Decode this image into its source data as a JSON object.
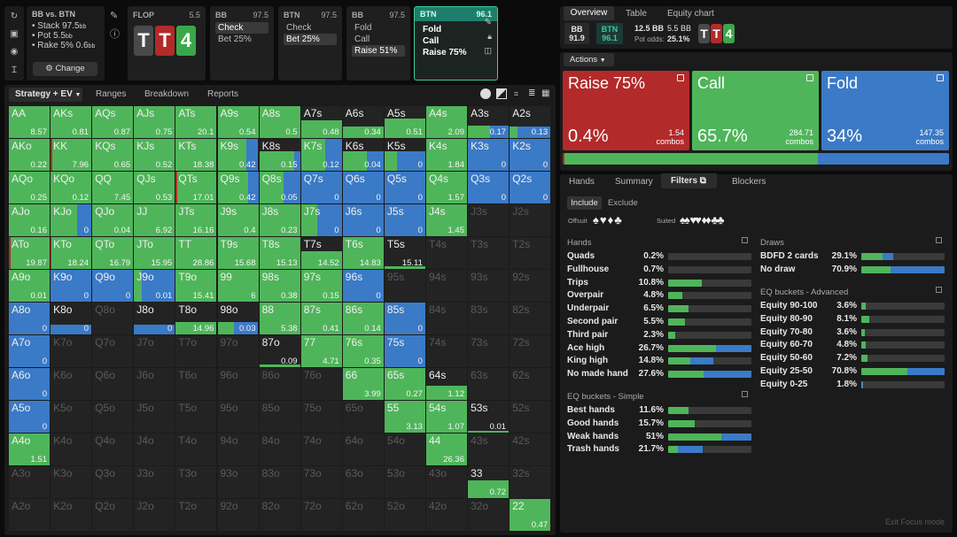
{
  "colors": {
    "raise": "#b32a2a",
    "call": "#4fb55a",
    "fold": "#3b7ac6",
    "empty": "#232323"
  },
  "left_icons": [
    "refresh-icon",
    "save-icon",
    "gamepad-icon",
    "text-cursor-icon"
  ],
  "header": {
    "spot": {
      "title": "BB vs. BTN",
      "stack": "Stack 97.5",
      "stack_unit": "bb",
      "pot": "Pot 5.5",
      "pot_unit": "bb",
      "rake": "Rake 5% 0.6",
      "rake_unit": "bb",
      "change": "Change"
    },
    "flop": {
      "label": "FLOP",
      "value": "5.5",
      "cards": [
        "T",
        "T",
        "4"
      ]
    },
    "bb1": {
      "label": "BB",
      "value": "97.5",
      "lines": [
        "Check",
        "Bet 25%"
      ]
    },
    "btn1": {
      "label": "BTN",
      "value": "97.5",
      "lines": [
        "Check",
        "Bet 25%"
      ]
    },
    "bb2": {
      "label": "BB",
      "value": "97.5",
      "lines": [
        "Fold",
        "Call",
        "Raise 51%"
      ]
    },
    "btn2": {
      "label": "BTN",
      "value": "96.1",
      "lines": [
        "Fold",
        "Call",
        "Raise 75%"
      ]
    }
  },
  "right_tabs": [
    "Overview",
    "Table",
    "Equity chart"
  ],
  "summary": {
    "bb_label": "BB",
    "bb_val": "91.9",
    "btn_label": "BTN",
    "btn_val": "96.1",
    "pot": "12.5 BB",
    "pot_odds_label": "Pot odds:",
    "bet": "5.5 BB",
    "pot_odds": "25.1%",
    "board": [
      "T",
      "T",
      "4"
    ]
  },
  "actions": {
    "label": "Actions",
    "items": [
      {
        "name": "Raise 75%",
        "pct": "0.4%",
        "combos": "1.54",
        "unit": "combos"
      },
      {
        "name": "Call",
        "pct": "65.7%",
        "combos": "284.71",
        "unit": "combos"
      },
      {
        "name": "Fold",
        "pct": "34%",
        "combos": "147.35",
        "unit": "combos"
      }
    ],
    "strip": {
      "raise": 0.4,
      "call": 65.7,
      "fold": 34
    }
  },
  "strategy_tabs": [
    "Strategy + EV",
    "Ranges",
    "Breakdown",
    "Reports"
  ],
  "grid": [
    [
      {
        "n": "AA",
        "ev": "8.57",
        "c": 100
      },
      {
        "n": "AKs",
        "ev": "0.81",
        "c": 100
      },
      {
        "n": "AQs",
        "ev": "0.87",
        "c": 100
      },
      {
        "n": "AJs",
        "ev": "0.75",
        "c": 100
      },
      {
        "n": "ATs",
        "ev": "20.1",
        "c": 100
      },
      {
        "n": "A9s",
        "ev": "0.54",
        "c": 100
      },
      {
        "n": "A8s",
        "ev": "0.5",
        "c": 100
      },
      {
        "n": "A7s",
        "ev": "0.48",
        "c": 100,
        "h": 0.55
      },
      {
        "n": "A6s",
        "ev": "0.34",
        "c": 100,
        "h": 0.35
      },
      {
        "n": "A5s",
        "ev": "0.51",
        "c": 100,
        "h": 0.6
      },
      {
        "n": "A4s",
        "ev": "2.09",
        "c": 100
      },
      {
        "n": "A3s",
        "ev": "0.17",
        "c": 55,
        "f": 45,
        "h": 0.4
      },
      {
        "n": "A2s",
        "ev": "0.13",
        "c": 20,
        "f": 80,
        "h": 0.35
      }
    ],
    [
      {
        "n": "AKo",
        "ev": "0.22",
        "c": 100
      },
      {
        "n": "KK",
        "ev": "7.96",
        "r": 5,
        "c": 95
      },
      {
        "n": "KQs",
        "ev": "0.65",
        "c": 100
      },
      {
        "n": "KJs",
        "ev": "0.52",
        "c": 100
      },
      {
        "n": "KTs",
        "ev": "18.38",
        "c": 100
      },
      {
        "n": "K9s",
        "ev": "0.42",
        "c": 70,
        "f": 30
      },
      {
        "n": "K8s",
        "ev": "0.15",
        "c": 85,
        "f": 15,
        "h": 0.6
      },
      {
        "n": "K7s",
        "ev": "0.12",
        "c": 60,
        "f": 40
      },
      {
        "n": "K6s",
        "ev": "0.04",
        "c": 60,
        "f": 40,
        "h": 0.6
      },
      {
        "n": "K5s",
        "ev": "0",
        "c": 30,
        "f": 70,
        "h": 0.6
      },
      {
        "n": "K4s",
        "ev": "1.84",
        "c": 100
      },
      {
        "n": "K3s",
        "ev": "0",
        "f": 100
      },
      {
        "n": "K2s",
        "ev": "0",
        "f": 100
      }
    ],
    [
      {
        "n": "AQo",
        "ev": "0.25",
        "c": 100
      },
      {
        "n": "KQo",
        "ev": "0.12",
        "c": 100
      },
      {
        "n": "QQ",
        "ev": "7.45",
        "c": 100
      },
      {
        "n": "QJs",
        "ev": "0.53",
        "c": 100
      },
      {
        "n": "QTs",
        "ev": "17.01",
        "r": 3,
        "c": 97
      },
      {
        "n": "Q9s",
        "ev": "0.42",
        "c": 75,
        "f": 25
      },
      {
        "n": "Q8s",
        "ev": "0.05",
        "c": 60,
        "f": 40
      },
      {
        "n": "Q7s",
        "ev": "0",
        "f": 100
      },
      {
        "n": "Q6s",
        "ev": "0",
        "f": 100
      },
      {
        "n": "Q5s",
        "ev": "0",
        "f": 100
      },
      {
        "n": "Q4s",
        "ev": "1.57",
        "c": 100
      },
      {
        "n": "Q3s",
        "ev": "0",
        "f": 100
      },
      {
        "n": "Q2s",
        "ev": "0",
        "f": 100
      }
    ],
    [
      {
        "n": "AJo",
        "ev": "0.16",
        "c": 100
      },
      {
        "n": "KJo",
        "ev": "0",
        "c": 65,
        "f": 35
      },
      {
        "n": "QJo",
        "ev": "0.04",
        "c": 100
      },
      {
        "n": "JJ",
        "ev": "6.92",
        "c": 100
      },
      {
        "n": "JTs",
        "ev": "16.16",
        "c": 100
      },
      {
        "n": "J9s",
        "ev": "0.4",
        "c": 100
      },
      {
        "n": "J8s",
        "ev": "0.23",
        "c": 100
      },
      {
        "n": "J7s",
        "ev": "0",
        "c": 40,
        "f": 60
      },
      {
        "n": "J6s",
        "ev": "0",
        "f": 100
      },
      {
        "n": "J5s",
        "ev": "0",
        "f": 100
      },
      {
        "n": "J4s",
        "ev": "1.45",
        "c": 100
      },
      {
        "n": "J3s",
        "d": 1
      },
      {
        "n": "J2s",
        "d": 1
      }
    ],
    [
      {
        "n": "ATo",
        "ev": "19.87",
        "r": 5,
        "c": 95
      },
      {
        "n": "KTo",
        "ev": "18.24",
        "r": 3,
        "c": 97
      },
      {
        "n": "QTo",
        "ev": "16.79",
        "c": 100
      },
      {
        "n": "JTo",
        "ev": "15.95",
        "c": 100
      },
      {
        "n": "TT",
        "ev": "28.86",
        "c": 100
      },
      {
        "n": "T9s",
        "ev": "15.68",
        "c": 100
      },
      {
        "n": "T8s",
        "ev": "15.13",
        "c": 100
      },
      {
        "n": "T7s",
        "ev": "14.52",
        "c": 100,
        "h": 0.55
      },
      {
        "n": "T6s",
        "ev": "14.83",
        "c": 100
      },
      {
        "n": "T5s",
        "ev": "15.11",
        "c": 100,
        "h": 0.08
      },
      {
        "n": "T4s",
        "d": 1
      },
      {
        "n": "T3s",
        "d": 1
      },
      {
        "n": "T2s",
        "d": 1
      }
    ],
    [
      {
        "n": "A9o",
        "ev": "0.01",
        "c": 100
      },
      {
        "n": "K9o",
        "ev": "0",
        "f": 100
      },
      {
        "n": "Q9o",
        "ev": "0",
        "f": 100
      },
      {
        "n": "J9o",
        "ev": "0.01",
        "c": 20,
        "f": 80
      },
      {
        "n": "T9o",
        "ev": "15.41",
        "c": 100
      },
      {
        "n": "99",
        "ev": "6",
        "c": 100
      },
      {
        "n": "98s",
        "ev": "0.38",
        "c": 100
      },
      {
        "n": "97s",
        "ev": "0.15",
        "c": 100
      },
      {
        "n": "96s",
        "ev": "0",
        "f": 100
      },
      {
        "n": "95s",
        "d": 1
      },
      {
        "n": "94s",
        "d": 1
      },
      {
        "n": "93s",
        "d": 1
      },
      {
        "n": "92s",
        "d": 1
      }
    ],
    [
      {
        "n": "A8o",
        "ev": "0",
        "f": 100
      },
      {
        "n": "K8o",
        "ev": "0",
        "f": 100,
        "h": 0.3
      },
      {
        "n": "Q8o",
        "d": 1
      },
      {
        "n": "J8o",
        "ev": "0",
        "f": 100,
        "h": 0.3
      },
      {
        "n": "T8o",
        "ev": "14.96",
        "c": 100,
        "h": 0.4
      },
      {
        "n": "98o",
        "ev": "0.03",
        "c": 40,
        "f": 60,
        "h": 0.4
      },
      {
        "n": "88",
        "ev": "5.38",
        "c": 100
      },
      {
        "n": "87s",
        "ev": "0.41",
        "c": 100
      },
      {
        "n": "86s",
        "ev": "0.14",
        "c": 100
      },
      {
        "n": "85s",
        "ev": "0",
        "f": 100
      },
      {
        "n": "84s",
        "d": 1
      },
      {
        "n": "83s",
        "d": 1
      },
      {
        "n": "82s",
        "d": 1
      }
    ],
    [
      {
        "n": "A7o",
        "ev": "0",
        "f": 100
      },
      {
        "n": "K7o",
        "d": 1
      },
      {
        "n": "Q7o",
        "d": 1
      },
      {
        "n": "J7o",
        "d": 1
      },
      {
        "n": "T7o",
        "d": 1
      },
      {
        "n": "97o",
        "d": 1
      },
      {
        "n": "87o",
        "ev": "0.09",
        "c": 100,
        "h": 0.08
      },
      {
        "n": "77",
        "ev": "4.71",
        "c": 100
      },
      {
        "n": "76s",
        "ev": "0.35",
        "c": 100
      },
      {
        "n": "75s",
        "ev": "0",
        "f": 100
      },
      {
        "n": "74s",
        "d": 1
      },
      {
        "n": "73s",
        "d": 1
      },
      {
        "n": "72s",
        "d": 1
      }
    ],
    [
      {
        "n": "A6o",
        "ev": "0",
        "f": 100
      },
      {
        "n": "K6o",
        "d": 1
      },
      {
        "n": "Q6o",
        "d": 1
      },
      {
        "n": "J6o",
        "d": 1
      },
      {
        "n": "T6o",
        "d": 1
      },
      {
        "n": "96o",
        "d": 1
      },
      {
        "n": "86o",
        "d": 1
      },
      {
        "n": "76o",
        "d": 1
      },
      {
        "n": "66",
        "ev": "3.99",
        "c": 100
      },
      {
        "n": "65s",
        "ev": "0.27",
        "c": 100
      },
      {
        "n": "64s",
        "ev": "1.12",
        "c": 100,
        "h": 0.45
      },
      {
        "n": "63s",
        "d": 1
      },
      {
        "n": "62s",
        "d": 1
      }
    ],
    [
      {
        "n": "A5o",
        "ev": "0",
        "f": 100
      },
      {
        "n": "K5o",
        "d": 1
      },
      {
        "n": "Q5o",
        "d": 1
      },
      {
        "n": "J5o",
        "d": 1
      },
      {
        "n": "T5o",
        "d": 1
      },
      {
        "n": "95o",
        "d": 1
      },
      {
        "n": "85o",
        "d": 1
      },
      {
        "n": "75o",
        "d": 1
      },
      {
        "n": "65o",
        "d": 1
      },
      {
        "n": "55",
        "ev": "3.13",
        "c": 100
      },
      {
        "n": "54s",
        "ev": "1.07",
        "c": 100
      },
      {
        "n": "53s",
        "ev": "0.01",
        "c": 100,
        "h": 0.05
      },
      {
        "n": "52s",
        "d": 1
      }
    ],
    [
      {
        "n": "A4o",
        "ev": "1.51",
        "c": 100
      },
      {
        "n": "K4o",
        "d": 1
      },
      {
        "n": "Q4o",
        "d": 1
      },
      {
        "n": "J4o",
        "d": 1
      },
      {
        "n": "T4o",
        "d": 1
      },
      {
        "n": "94o",
        "d": 1
      },
      {
        "n": "84o",
        "d": 1
      },
      {
        "n": "74o",
        "d": 1
      },
      {
        "n": "64o",
        "d": 1
      },
      {
        "n": "54o",
        "d": 1
      },
      {
        "n": "44",
        "ev": "26.36",
        "c": 100
      },
      {
        "n": "43s",
        "d": 1
      },
      {
        "n": "42s",
        "d": 1
      }
    ],
    [
      {
        "n": "A3o",
        "d": 1
      },
      {
        "n": "K3o",
        "d": 1
      },
      {
        "n": "Q3o",
        "d": 1
      },
      {
        "n": "J3o",
        "d": 1
      },
      {
        "n": "T3o",
        "d": 1
      },
      {
        "n": "93o",
        "d": 1
      },
      {
        "n": "83o",
        "d": 1
      },
      {
        "n": "73o",
        "d": 1
      },
      {
        "n": "63o",
        "d": 1
      },
      {
        "n": "53o",
        "d": 1
      },
      {
        "n": "43o",
        "d": 1
      },
      {
        "n": "33",
        "ev": "0.72",
        "c": 100,
        "h": 0.55
      },
      {
        "n": "32s",
        "d": 1
      }
    ],
    [
      {
        "n": "A2o",
        "d": 1
      },
      {
        "n": "K2o",
        "d": 1
      },
      {
        "n": "Q2o",
        "d": 1
      },
      {
        "n": "J2o",
        "d": 1
      },
      {
        "n": "T2o",
        "d": 1
      },
      {
        "n": "92o",
        "d": 1
      },
      {
        "n": "82o",
        "d": 1
      },
      {
        "n": "72o",
        "d": 1
      },
      {
        "n": "62o",
        "d": 1
      },
      {
        "n": "52o",
        "d": 1
      },
      {
        "n": "42o",
        "d": 1
      },
      {
        "n": "32o",
        "d": 1
      },
      {
        "n": "22",
        "ev": "0.47",
        "c": 100
      }
    ]
  ],
  "lower_tabs": [
    "Hands",
    "Summary",
    "Filters",
    "Blockers"
  ],
  "filters": {
    "include": "Include",
    "exclude": "Exclude",
    "offsuit": "Offsuit",
    "suited": "Suited"
  },
  "hands": {
    "title": "Hands",
    "rows": [
      {
        "n": "Quads",
        "p": "0.2%",
        "c": 0,
        "f": 0
      },
      {
        "n": "Fullhouse",
        "p": "0.7%",
        "c": 0,
        "f": 0
      },
      {
        "n": "Trips",
        "p": "10.8%",
        "c": 40,
        "f": 0
      },
      {
        "n": "Overpair",
        "p": "4.8%",
        "c": 17,
        "f": 0
      },
      {
        "n": "Underpair",
        "p": "6.5%",
        "c": 24,
        "f": 0
      },
      {
        "n": "Second pair",
        "p": "5.5%",
        "c": 20,
        "f": 0
      },
      {
        "n": "Third pair",
        "p": "2.3%",
        "c": 8,
        "f": 0
      },
      {
        "n": "Ace high",
        "p": "26.7%",
        "c": 57,
        "f": 43
      },
      {
        "n": "King high",
        "p": "14.8%",
        "c": 27,
        "f": 27
      },
      {
        "n": "No made hand",
        "p": "27.6%",
        "c": 43,
        "f": 57
      }
    ]
  },
  "eq_simple": {
    "title": "EQ buckets - Simple",
    "rows": [
      {
        "n": "Best hands",
        "p": "11.6%",
        "c": 24,
        "f": 0
      },
      {
        "n": "Good hands",
        "p": "15.7%",
        "c": 32,
        "f": 0
      },
      {
        "n": "Weak hands",
        "p": "51%",
        "c": 64,
        "f": 36
      },
      {
        "n": "Trash hands",
        "p": "21.7%",
        "c": 12,
        "f": 30
      }
    ]
  },
  "draws": {
    "title": "Draws",
    "rows": [
      {
        "n": "BDFD 2 cards",
        "p": "29.1%",
        "c": 26,
        "f": 12
      },
      {
        "n": "No draw",
        "p": "70.9%",
        "c": 35,
        "f": 65
      }
    ]
  },
  "eq_adv": {
    "title": "EQ buckets - Advanced",
    "rows": [
      {
        "n": "Equity 90-100",
        "p": "3.6%",
        "c": 5,
        "f": 0
      },
      {
        "n": "Equity 80-90",
        "p": "8.1%",
        "c": 10,
        "f": 0
      },
      {
        "n": "Equity 70-80",
        "p": "3.6%",
        "c": 4,
        "f": 0
      },
      {
        "n": "Equity 60-70",
        "p": "4.8%",
        "c": 5,
        "f": 0
      },
      {
        "n": "Equity 50-60",
        "p": "7.2%",
        "c": 7,
        "f": 0
      },
      {
        "n": "Equity 25-50",
        "p": "70.8%",
        "c": 55,
        "f": 45
      },
      {
        "n": "Equity 0-25",
        "p": "1.8%",
        "c": 1,
        "f": 1
      }
    ]
  },
  "exit": "Exit Focus mode"
}
